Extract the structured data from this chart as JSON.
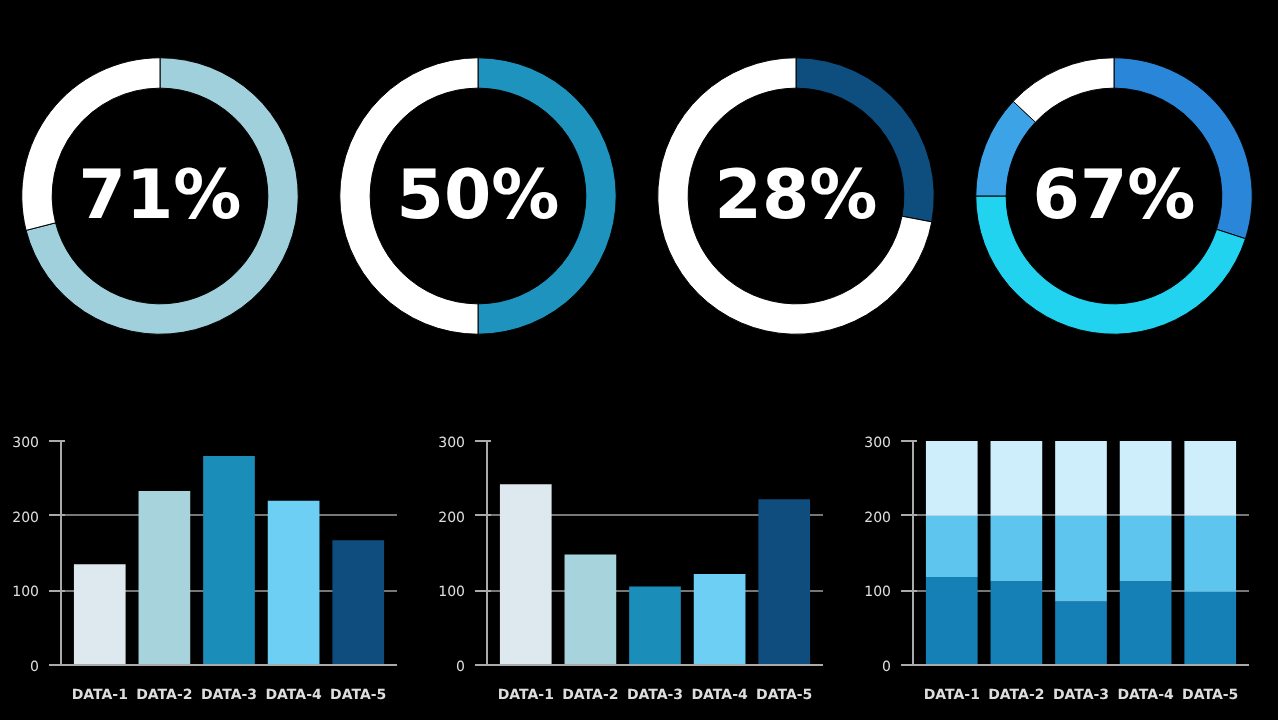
{
  "chart_data": [
    {
      "type": "donut",
      "categories": [
        null,
        null
      ],
      "values": [
        71,
        29
      ],
      "colors": [
        "#9fd0dc",
        "#ffffff"
      ],
      "annotations": [
        "71%"
      ]
    },
    {
      "type": "donut",
      "categories": [
        null,
        null
      ],
      "values": [
        50,
        50
      ],
      "colors": [
        "#1d93bd",
        "#ffffff"
      ],
      "annotations": [
        "50%"
      ]
    },
    {
      "type": "donut",
      "categories": [
        null,
        null
      ],
      "values": [
        28,
        72
      ],
      "colors": [
        "#0e4e7e",
        "#ffffff"
      ],
      "annotations": [
        "28%"
      ]
    },
    {
      "type": "donut",
      "categories": [
        null,
        null,
        null,
        null
      ],
      "values": [
        30,
        45,
        12,
        13
      ],
      "colors": [
        "#2a86d8",
        "#22d3f0",
        "#3ba3e6",
        "#ffffff"
      ],
      "annotations": [
        "67%"
      ]
    },
    {
      "type": "bar",
      "categories": [
        "DATA-1",
        "DATA-2",
        "DATA-3",
        "DATA-4",
        "DATA-5"
      ],
      "values": [
        135,
        233,
        280,
        220,
        167
      ],
      "colors": [
        "#dde9ef",
        "#a6d3dc",
        "#1a8db8",
        "#6ecff5",
        "#0e4d7e"
      ],
      "ylim": [
        0,
        300
      ],
      "yticks": [
        0,
        100,
        200,
        300
      ],
      "grid": "y"
    },
    {
      "type": "bar",
      "categories": [
        "DATA-1",
        "DATA-2",
        "DATA-3",
        "DATA-4",
        "DATA-5"
      ],
      "values": [
        242,
        148,
        105,
        122,
        222
      ],
      "colors": [
        "#dde9ef",
        "#a6d3dc",
        "#1a8db8",
        "#6ecff5",
        "#0e4d7e"
      ],
      "ylim": [
        0,
        300
      ],
      "yticks": [
        0,
        100,
        200,
        300
      ],
      "grid": "y"
    },
    {
      "type": "bar",
      "stacked": true,
      "categories": [
        "DATA-1",
        "DATA-2",
        "DATA-3",
        "DATA-4",
        "DATA-5"
      ],
      "series": [
        {
          "color": "#1580b5",
          "values": [
            118,
            112,
            85,
            112,
            98
          ]
        },
        {
          "color": "#5ec5ef",
          "values": [
            82,
            88,
            115,
            88,
            102
          ]
        },
        {
          "color": "#cfeefc",
          "values": [
            100,
            100,
            100,
            100,
            100
          ]
        }
      ],
      "ylim": [
        0,
        300
      ],
      "yticks": [
        0,
        100,
        200,
        300
      ],
      "grid": "y"
    }
  ]
}
